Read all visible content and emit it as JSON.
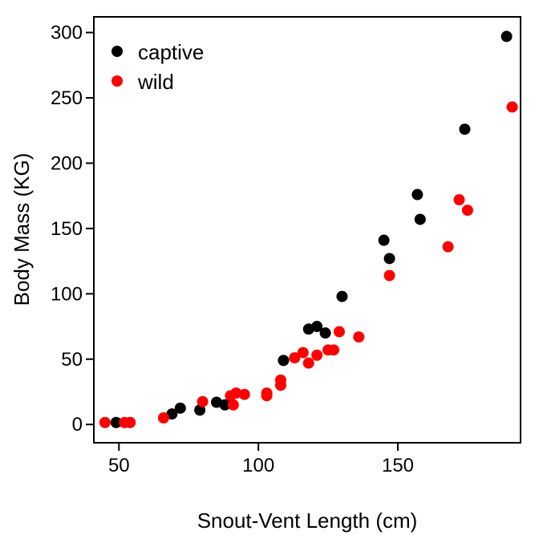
{
  "chart_data": {
    "type": "scatter",
    "title": "",
    "xlabel": "Snout-Vent Length (cm)",
    "ylabel": "Body Mass (KG)",
    "xlim": [
      41,
      194
    ],
    "ylim": [
      -14,
      312
    ],
    "x_ticks": [
      50,
      100,
      150
    ],
    "y_ticks": [
      0,
      50,
      100,
      150,
      200,
      250,
      300
    ],
    "grid": false,
    "legend_position": "top-left",
    "series": [
      {
        "name": "captive",
        "color": "#000000",
        "points": [
          [
            49,
            1.5
          ],
          [
            69,
            8
          ],
          [
            72,
            12.5
          ],
          [
            79,
            11
          ],
          [
            85,
            17
          ],
          [
            88,
            15
          ],
          [
            109,
            49
          ],
          [
            118,
            73
          ],
          [
            121,
            75
          ],
          [
            124,
            70
          ],
          [
            130,
            98
          ],
          [
            145,
            141
          ],
          [
            147,
            127
          ],
          [
            157,
            176
          ],
          [
            158,
            157
          ],
          [
            174,
            226
          ],
          [
            189,
            297
          ]
        ]
      },
      {
        "name": "wild",
        "color": "#ff0000",
        "points": [
          [
            45,
            1.5
          ],
          [
            52,
            1.5
          ],
          [
            54,
            1.5
          ],
          [
            66,
            5
          ],
          [
            80,
            17.5
          ],
          [
            90,
            22
          ],
          [
            91,
            15
          ],
          [
            92,
            24
          ],
          [
            95,
            23
          ],
          [
            103,
            24
          ],
          [
            103,
            22
          ],
          [
            108,
            30
          ],
          [
            108,
            34
          ],
          [
            113,
            51
          ],
          [
            116,
            55
          ],
          [
            118,
            47
          ],
          [
            121,
            53
          ],
          [
            125,
            57
          ],
          [
            127,
            57
          ],
          [
            129,
            71
          ],
          [
            136,
            67
          ],
          [
            147,
            114
          ],
          [
            168,
            136
          ],
          [
            172,
            172
          ],
          [
            175,
            164
          ],
          [
            191,
            243
          ]
        ]
      }
    ]
  }
}
